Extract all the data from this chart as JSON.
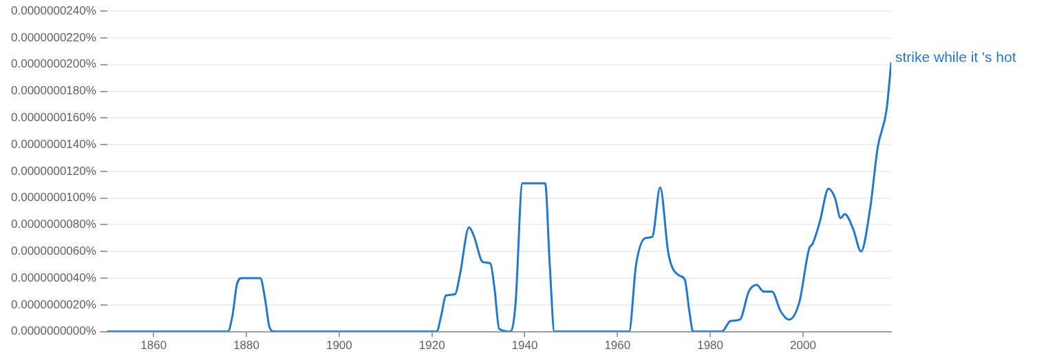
{
  "chart_data": {
    "type": "line",
    "x": [
      1850,
      1876,
      1877,
      1878,
      1879,
      1883,
      1884,
      1885,
      1886,
      1921,
      1922,
      1923,
      1925,
      1926,
      1928,
      1929,
      1931,
      1932.6,
      1933.5,
      1934.5,
      1937,
      1938,
      1939.5,
      1944.4,
      1945.4,
      1946.4,
      1962.5,
      1964,
      1966,
      1967.5,
      1969.2,
      1971,
      1973.3,
      1974.5,
      1975.5,
      1976.3,
      1982.5,
      1984.4,
      1986.4,
      1988.3,
      1990,
      1991.5,
      1993.3,
      1995.2,
      1997,
      1999.2,
      2001.3,
      2002.1,
      2003.6,
      2005.5,
      2006.9,
      2008.1,
      2009,
      2010.8,
      2012.5,
      2014.5,
      2016.1,
      2018,
      2019
    ],
    "series": [
      {
        "name": "strike while it 's hot",
        "color": "#1f78d1",
        "values": [
          0,
          0,
          1.2e-09,
          3.6e-09,
          4e-09,
          4e-09,
          2.5e-09,
          3e-10,
          0,
          0,
          1.2e-09,
          2.7e-09,
          2.8e-09,
          4.2e-09,
          7.8e-09,
          7.2e-09,
          5.2e-09,
          5.1e-09,
          3.2e-09,
          2e-10,
          0,
          2e-09,
          1.11e-08,
          1.11e-08,
          5e-09,
          0,
          0,
          5e-09,
          7e-09,
          7.1e-09,
          1.08e-08,
          5.8e-09,
          4.2e-09,
          3.9e-09,
          1.5e-09,
          0,
          0,
          8e-10,
          9e-10,
          3e-09,
          3.5e-09,
          3e-09,
          3e-09,
          1.5e-09,
          9e-10,
          2.2e-09,
          6.2e-09,
          6.6e-09,
          8.2e-09,
          1.07e-08,
          1e-08,
          8.5e-09,
          8.8e-09,
          7.7e-09,
          6e-09,
          9.3e-09,
          1.38e-08,
          1.66e-08,
          2.01e-08
        ]
      }
    ],
    "xlim": [
      1850,
      2019
    ],
    "xticks": [
      1860,
      1880,
      1900,
      1920,
      1940,
      1960,
      1980,
      2000
    ],
    "ylim": [
      0,
      2.4e-08
    ],
    "yticks": [
      {
        "value": 0,
        "label": "0.0000000000%"
      },
      {
        "value": 2e-09,
        "label": "0.0000000020%"
      },
      {
        "value": 4e-09,
        "label": "0.0000000040%"
      },
      {
        "value": 6e-09,
        "label": "0.0000000060%"
      },
      {
        "value": 8e-09,
        "label": "0.0000000080%"
      },
      {
        "value": 1e-08,
        "label": "0.0000000100%"
      },
      {
        "value": 1.2e-08,
        "label": "0.0000000120%"
      },
      {
        "value": 1.4e-08,
        "label": "0.0000000140%"
      },
      {
        "value": 1.6e-08,
        "label": "0.0000000160%"
      },
      {
        "value": 1.8e-08,
        "label": "0.0000000180%"
      },
      {
        "value": 2e-08,
        "label": "0.0000000200%"
      },
      {
        "value": 2.2e-08,
        "label": "0.0000000220%"
      },
      {
        "value": 2.4e-08,
        "label": "0.0000000240%"
      }
    ],
    "grid": "y",
    "legend": false,
    "marker": "none"
  }
}
